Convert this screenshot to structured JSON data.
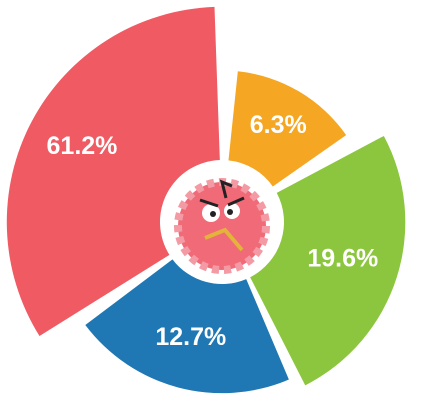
{
  "chart_data": {
    "type": "pie",
    "categories": [
      "Orange",
      "Green",
      "Blue",
      "Red"
    ],
    "values": [
      6.3,
      19.6,
      12.7,
      61.2
    ],
    "value_labels": [
      "6.3%",
      "19.6%",
      "12.7%",
      "61.2%"
    ],
    "colors": [
      "#f5a623",
      "#8cc63f",
      "#1f78b4",
      "#ef5a63"
    ]
  }
}
